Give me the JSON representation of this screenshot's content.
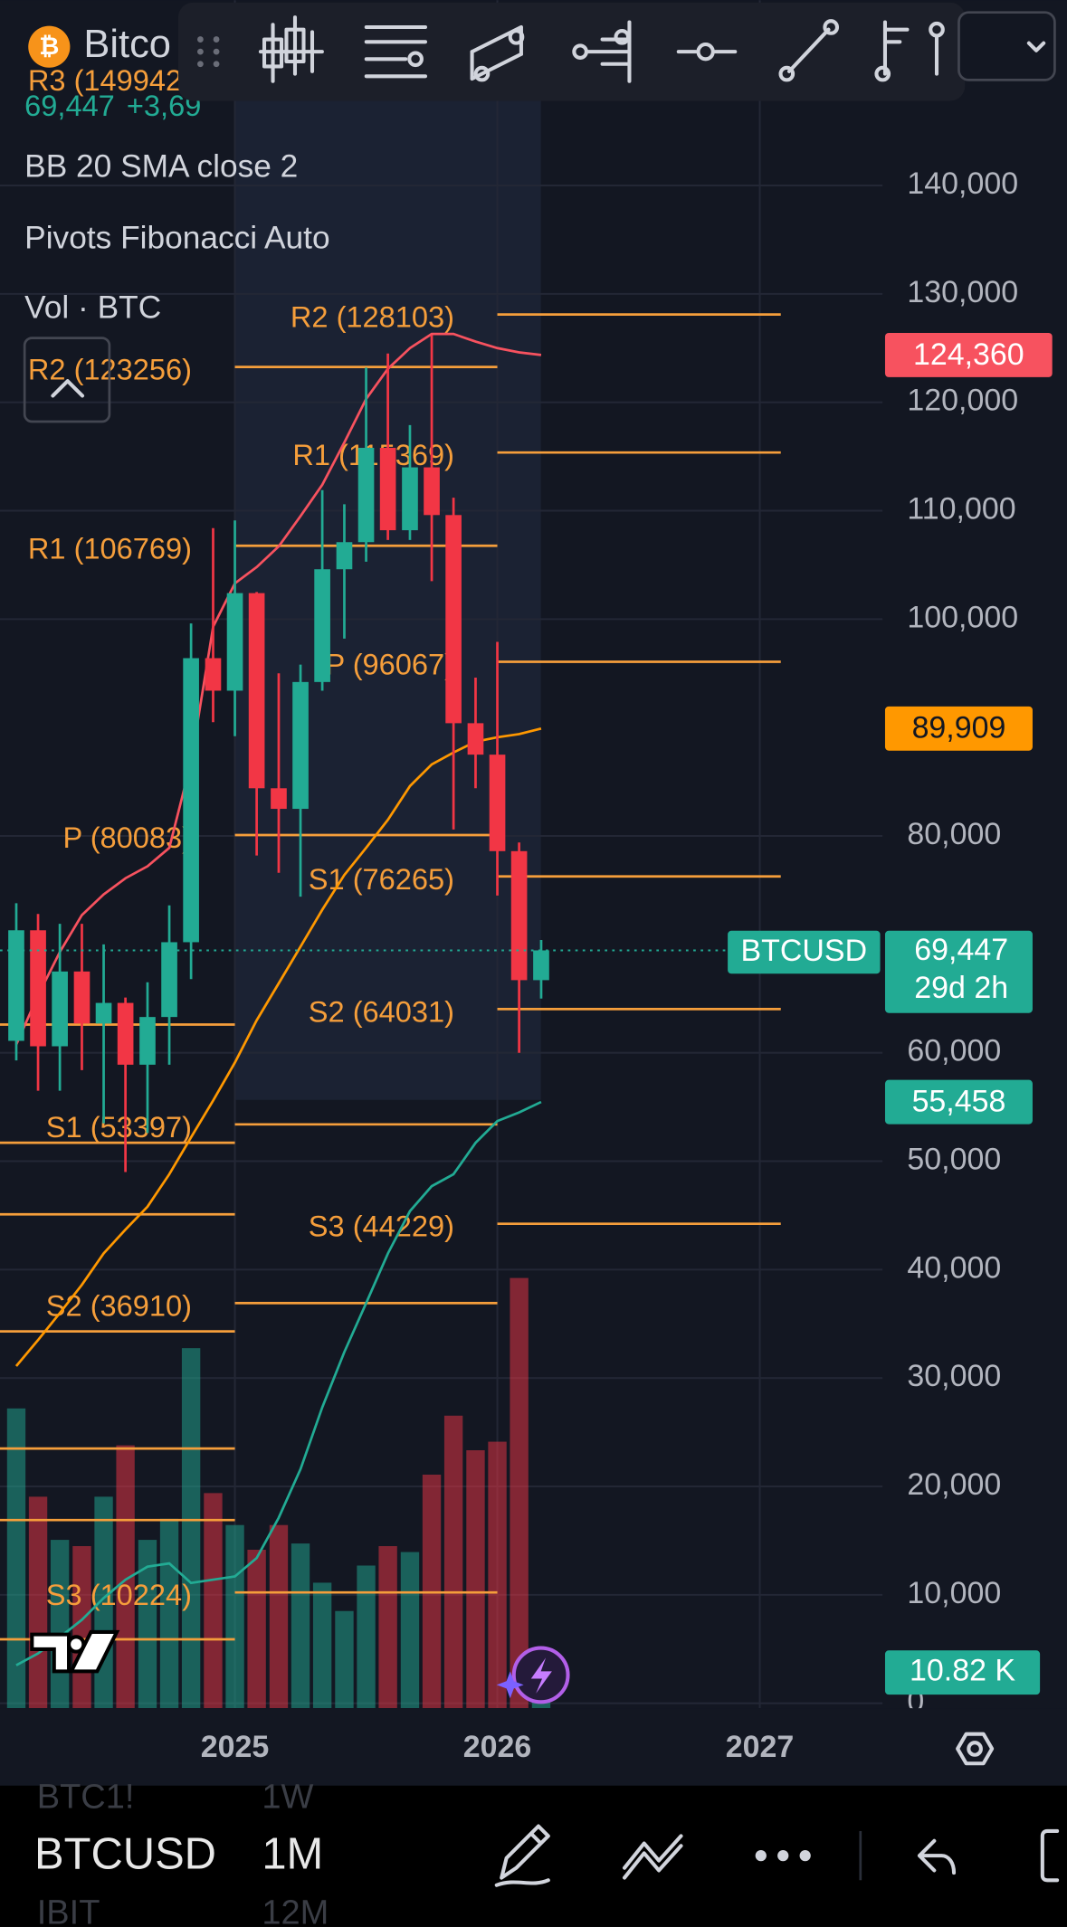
{
  "header": {
    "symbol_short": "Bitco",
    "legend_price": "69,447",
    "legend_change": "+3,69",
    "indicators": [
      "BB 20 SMA close 2",
      "Pivots Fibonacci Auto",
      "Vol · BTC"
    ]
  },
  "chart_data": {
    "type": "candlestick",
    "x": [
      2024.167,
      2024.25,
      2024.333,
      2024.417,
      2024.5,
      2024.583,
      2024.667,
      2024.75,
      2024.833,
      2024.917,
      2025,
      2025.083,
      2025.167,
      2025.25,
      2025.333,
      2025.417,
      2025.5,
      2025.583,
      2025.667,
      2025.75,
      2025.833,
      2025.917,
      2026,
      2026.083,
      2026.167
    ],
    "open": [
      61100,
      71300,
      60600,
      67500,
      62700,
      64600,
      58900,
      63300,
      70200,
      96400,
      93400,
      102400,
      84400,
      82500,
      94200,
      104600,
      107100,
      115800,
      108200,
      114000,
      109600,
      90400,
      87500,
      78600,
      66700
    ],
    "high": [
      73800,
      72800,
      71900,
      71900,
      70000,
      65100,
      66500,
      73600,
      99600,
      108400,
      109100,
      102500,
      95000,
      95800,
      111900,
      110600,
      123200,
      124500,
      117900,
      126200,
      111200,
      94600,
      97900,
      79400,
      70400
    ],
    "low": [
      59300,
      56500,
      56500,
      58400,
      53500,
      49000,
      52600,
      58900,
      66800,
      90500,
      89200,
      78200,
      76600,
      74400,
      93400,
      98200,
      105300,
      107300,
      107300,
      103500,
      80600,
      84400,
      74500,
      60000,
      65000
    ],
    "close": [
      71300,
      60600,
      67500,
      62700,
      64600,
      58900,
      63300,
      70200,
      96400,
      93400,
      102400,
      84400,
      82500,
      94200,
      104600,
      107100,
      115800,
      108200,
      114000,
      109600,
      90400,
      87500,
      78600,
      66700,
      69447
    ],
    "last_close_label": "69,447",
    "countdown": "29d 2h",
    "symbol": "BTCUSD",
    "up_color": "#22ab94",
    "down_color": "#f23645",
    "xlim": [
      2024.105,
      2027.468
    ],
    "xticks": [
      2025,
      2026,
      2027
    ],
    "ylim": [
      0,
      157100
    ],
    "yticks": [
      0,
      {
        "value": 10000,
        "label": "10,000"
      },
      {
        "value": 20000,
        "label": "20,000"
      },
      {
        "value": 30000,
        "label": "30,000"
      },
      {
        "value": 40000,
        "label": "40,000"
      },
      {
        "value": 50000,
        "label": "50,000"
      },
      {
        "value": 60000,
        "label": "60,000"
      },
      {
        "value": 80000,
        "label": "80,000"
      },
      {
        "value": 100000,
        "label": "100,000"
      },
      {
        "value": 110000,
        "label": "110,000"
      },
      {
        "value": 120000,
        "label": "120,000"
      },
      {
        "value": 130000,
        "label": "130,000"
      },
      {
        "value": 140000,
        "label": "140,000"
      }
    ],
    "grid": true,
    "bollinger": [
      {
        "color": "#f7525f",
        "values": [
          60750,
          65300,
          69300,
          72700,
          74600,
          76100,
          77200,
          78900,
          86800,
          99300,
          103300,
          104800,
          106700,
          109500,
          112400,
          116300,
          120300,
          123100,
          125000,
          126300,
          126300,
          125600,
          125000,
          124600,
          124360
        ],
        "last_label": "124,360"
      },
      {
        "color": "#ff9800",
        "values": [
          31100,
          33500,
          36000,
          38600,
          41500,
          43700,
          45800,
          48800,
          52200,
          55600,
          59100,
          63000,
          66400,
          69800,
          73200,
          76400,
          78900,
          81500,
          84600,
          86600,
          87700,
          88700,
          89100,
          89400,
          89909
        ],
        "last_label": "89,909"
      },
      {
        "color": "#22ab94",
        "values": [
          3500,
          4600,
          6100,
          7700,
          9700,
          11400,
          12600,
          12900,
          11100,
          11400,
          11700,
          13400,
          17100,
          21600,
          27300,
          32400,
          36900,
          41500,
          45400,
          47700,
          48800,
          51700,
          53700,
          54500,
          55458
        ],
        "last_label": "55,458"
      }
    ],
    "volume": {
      "values": [
        89.5,
        62.7,
        49.6,
        47.7,
        62.7,
        78.3,
        49.6,
        56.0,
        107.8,
        63.8,
        54.1,
        46.6,
        54.1,
        48.5,
        36.6,
        28.0,
        41.8,
        47.7,
        45.9,
        69.4,
        87.3,
        76.8,
        79.4,
        129.1,
        10.82
      ],
      "last_label": "10.82 K",
      "ylim": [
        0,
        517
      ],
      "up_color": "rgba(34,171,148,0.5)",
      "down_color": "rgba(242,54,69,0.5)"
    },
    "pivot_color": "#f59e3b",
    "pivots": [
      {
        "period": [
          2024.0,
          2025.0
        ],
        "levels": [
          62600,
          51700,
          45100,
          34300,
          23500,
          16900,
          5900
        ]
      },
      {
        "period": [
          2025.0,
          2026.0
        ],
        "levels": [
          {
            "value": 149942,
            "label": "R3 (149942)"
          },
          {
            "value": 123256,
            "label": "R2 (123256)"
          },
          {
            "value": 106769,
            "label": "R1 (106769)"
          },
          {
            "value": 80083,
            "label": "P (80083)"
          },
          {
            "value": 53397,
            "label": "S1 (53397)"
          },
          {
            "value": 36910,
            "label": "S2 (36910)"
          },
          {
            "value": 10224,
            "label": "S3 (10224)"
          }
        ]
      },
      {
        "period": [
          2026.0,
          2027.08
        ],
        "levels": [
          {
            "value": 128103,
            "label": "R2 (128103)"
          },
          {
            "value": 115369,
            "label": "R1 (115369)"
          },
          {
            "value": 96067,
            "label": "P (96067)"
          },
          {
            "value": 76265,
            "label": "S1 (76265)"
          },
          {
            "value": 64031,
            "label": "S2 (64031)"
          },
          {
            "value": 44229,
            "label": "S3 (44229)"
          }
        ]
      }
    ]
  },
  "bottom_bar": {
    "symbol": "BTCUSD",
    "interval": "1M",
    "prev_symbol": "BTC1!",
    "prev_interval": "1W",
    "next_symbol": "IBIT",
    "next_interval": "12M"
  }
}
